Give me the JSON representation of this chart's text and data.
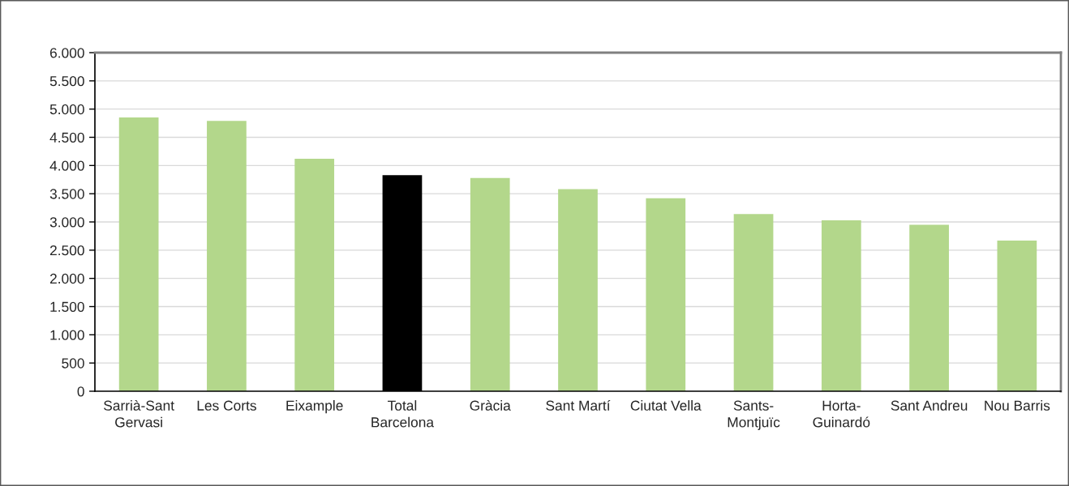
{
  "chart_data": {
    "type": "bar",
    "categories": [
      "Sarrià-Sant Gervasi",
      "Les Corts",
      "Eixample",
      "Total Barcelona",
      "Gràcia",
      "Sant Martí",
      "Ciutat Vella",
      "Sants-Montjuïc",
      "Horta-Guinardó",
      "Sant Andreu",
      "Nou Barris"
    ],
    "values": [
      4850,
      4790,
      4120,
      3830,
      3780,
      3580,
      3420,
      3140,
      3030,
      2950,
      2670
    ],
    "colors": [
      "#b3d78b",
      "#b3d78b",
      "#b3d78b",
      "#000000",
      "#b3d78b",
      "#b3d78b",
      "#b3d78b",
      "#b3d78b",
      "#b3d78b",
      "#b3d78b",
      "#b3d78b"
    ],
    "ylim": [
      0,
      6000
    ],
    "yticks": [
      0,
      500,
      {
        "value": 1000,
        "label": "1.000"
      },
      {
        "value": 1500,
        "label": "1.500"
      },
      {
        "value": 2000,
        "label": "2.000"
      },
      {
        "value": 2500,
        "label": "2.500"
      },
      {
        "value": 3000,
        "label": "3.000"
      },
      {
        "value": 3500,
        "label": "3.500"
      },
      {
        "value": 4000,
        "label": "4.000"
      },
      {
        "value": 4500,
        "label": "4.500"
      },
      {
        "value": 5000,
        "label": "5.000"
      },
      {
        "value": 5500,
        "label": "5.500"
      },
      {
        "value": 6000,
        "label": "6.000"
      }
    ],
    "grid": "y"
  }
}
